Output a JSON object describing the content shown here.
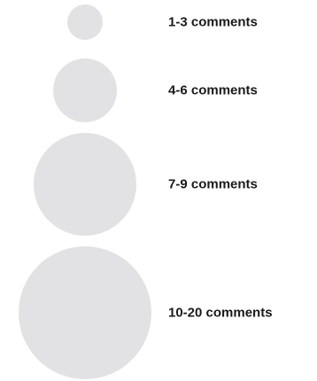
{
  "chart_data": {
    "type": "scatter",
    "title": "",
    "legend_kind": "bubble size legend",
    "bubble_color": "#e2e1e3",
    "label_color": "#1a1a1a",
    "entries": [
      {
        "label": "1-3 comments",
        "min": 1,
        "max": 3
      },
      {
        "label": "4-6 comments",
        "min": 4,
        "max": 6
      },
      {
        "label": "7-9 comments",
        "min": 7,
        "max": 9
      },
      {
        "label": "10-20 comments",
        "min": 10,
        "max": 20
      }
    ]
  }
}
